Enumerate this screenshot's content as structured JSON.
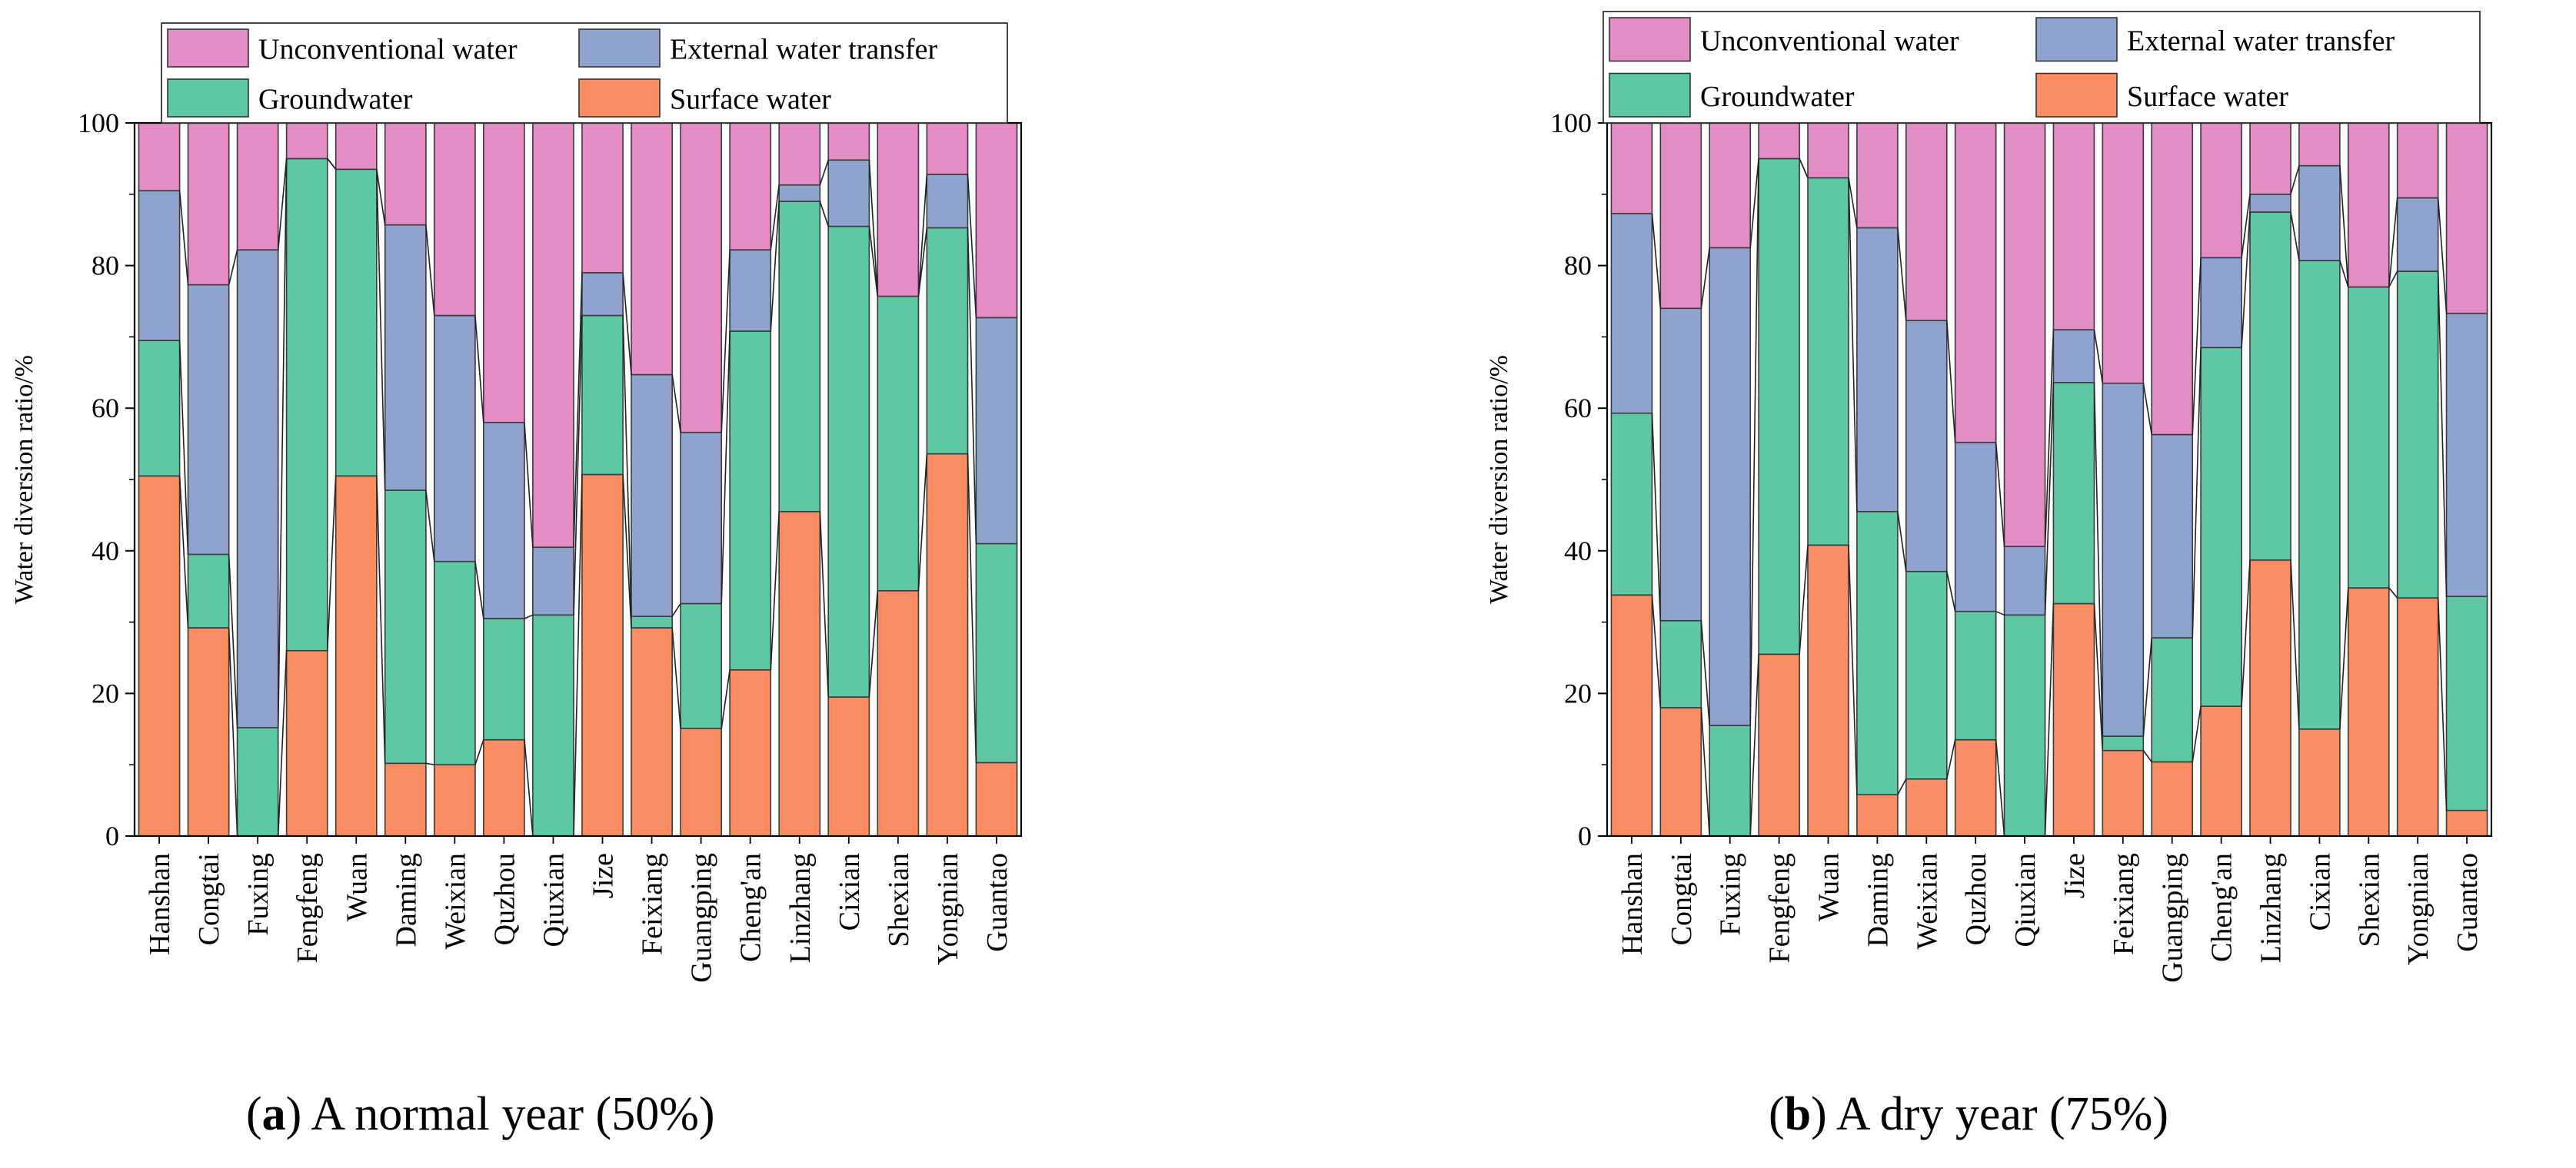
{
  "chart_data": [
    {
      "type": "bar",
      "stacked": true,
      "caption_letter": "a",
      "caption_text": "A normal year (50%)",
      "ylabel": "Water diversion ratio/%",
      "xlabel": "",
      "ylim": [
        0,
        100
      ],
      "yticks": [
        "0",
        "20",
        "40",
        "60",
        "80",
        "100"
      ],
      "legend_position": "top",
      "categories": [
        "Hanshan",
        "Congtai",
        "Fuxing",
        "Fengfeng",
        "Wuan",
        "Daming",
        "Weixian",
        "Quzhou",
        "Qiuxian",
        "Jize",
        "Feixiang",
        "Guangping",
        "Cheng'an",
        "Linzhang",
        "Cixian",
        "Shexian",
        "Yongnian",
        "Guantao"
      ],
      "series": [
        {
          "name": "Surface water",
          "color": "#fa8c64",
          "values": [
            50.5,
            29.2,
            0,
            26,
            50.5,
            10.2,
            10,
            13.5,
            0,
            50.7,
            29.2,
            15.1,
            23.3,
            45.5,
            19.5,
            34.4,
            53.6,
            10.3
          ]
        },
        {
          "name": "Groundwater",
          "color": "#5ec8a2",
          "values": [
            19,
            10.3,
            15.2,
            69,
            43,
            38.3,
            28.5,
            17,
            31,
            22.3,
            1.6,
            17.5,
            47.5,
            43.5,
            66,
            41.3,
            31.7,
            30.7
          ]
        },
        {
          "name": "External water transfer",
          "color": "#8ea4cf",
          "values": [
            21,
            37.8,
            67,
            0,
            0,
            37.2,
            34.5,
            27.5,
            9.5,
            6,
            33.9,
            24,
            11.4,
            2.3,
            9.3,
            0,
            7.5,
            31.7
          ]
        },
        {
          "name": "Unconventional water",
          "color": "#e38cc6",
          "values": [
            9.5,
            22.7,
            17.8,
            5,
            6.5,
            14.3,
            27,
            42,
            59.5,
            21,
            35.3,
            43.4,
            17.8,
            8.7,
            5.2,
            24.3,
            7.2,
            27.3
          ]
        }
      ]
    },
    {
      "type": "bar",
      "stacked": true,
      "caption_letter": "b",
      "caption_text": "A dry year (75%)",
      "ylabel": "Water diversion ratio/%",
      "xlabel": "",
      "ylim": [
        0,
        100
      ],
      "yticks": [
        "0",
        "20",
        "40",
        "60",
        "80",
        "100"
      ],
      "legend_position": "top",
      "categories": [
        "Hanshan",
        "Congtai",
        "Fuxing",
        "Fengfeng",
        "Wuan",
        "Daming",
        "Weixian",
        "Quzhou",
        "Qiuxian",
        "Jize",
        "Feixiang",
        "Guangping",
        "Cheng'an",
        "Linzhang",
        "Cixian",
        "Shexian",
        "Yongnian",
        "Guantao"
      ],
      "series": [
        {
          "name": "Surface water",
          "color": "#fa8c64",
          "values": [
            33.8,
            18,
            0,
            25.5,
            40.8,
            5.8,
            8,
            13.5,
            0,
            32.6,
            12,
            10.4,
            18.2,
            38.7,
            15,
            34.8,
            33.4,
            3.6
          ]
        },
        {
          "name": "Groundwater",
          "color": "#5ec8a2",
          "values": [
            25.5,
            12.2,
            15.5,
            69.5,
            51.5,
            39.7,
            29.1,
            18,
            31,
            31,
            2,
            17.4,
            50.3,
            48.8,
            65.7,
            42.2,
            45.8,
            30
          ]
        },
        {
          "name": "External water transfer",
          "color": "#8ea4cf",
          "values": [
            28,
            43.8,
            67,
            0,
            0,
            39.8,
            35.2,
            23.7,
            9.6,
            7.4,
            49.5,
            28.5,
            12.6,
            2.5,
            13.3,
            0,
            10.3,
            39.7
          ]
        },
        {
          "name": "Unconventional water",
          "color": "#e38cc6",
          "values": [
            12.7,
            26,
            17.5,
            5,
            7.7,
            14.7,
            27.7,
            44.8,
            59.4,
            29,
            36.5,
            43.7,
            18.9,
            10,
            6,
            23,
            10.5,
            26.7
          ]
        }
      ]
    }
  ]
}
